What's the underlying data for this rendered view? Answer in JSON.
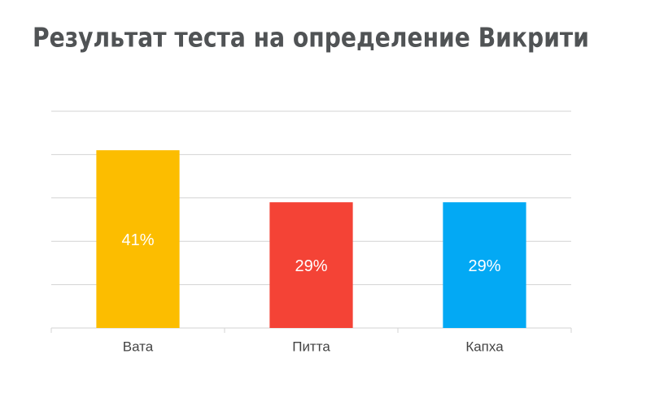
{
  "chart_data": {
    "type": "bar",
    "title": "Результат теста на определение Викрити",
    "categories": [
      "Вата",
      "Питта",
      "Капха"
    ],
    "values": [
      41,
      29,
      29
    ],
    "value_labels": [
      "41%",
      "29%",
      "29%"
    ],
    "colors": [
      "#fcbd00",
      "#f44336",
      "#03a9f4"
    ],
    "ylim": [
      0,
      50
    ],
    "yticks": [
      0,
      10,
      20,
      30,
      40,
      50
    ],
    "grid": true
  }
}
